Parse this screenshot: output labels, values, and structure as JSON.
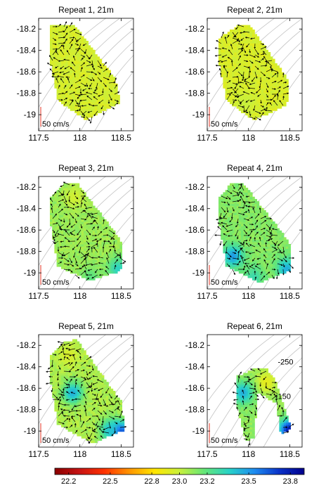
{
  "figure": {
    "colorbar": {
      "ticks": [
        22.2,
        22.5,
        22.8,
        23.0,
        23.2,
        23.5,
        23.8
      ],
      "range": [
        22.1,
        23.9
      ],
      "colormap": [
        "#8b0000",
        "#c81414",
        "#ff3200",
        "#ff9600",
        "#ffe600",
        "#c8f03c",
        "#64e678",
        "#28d2c8",
        "#1e8cf0",
        "#0a32c8",
        "#00008c"
      ]
    },
    "scale_label": "50 cm/s",
    "contour_labels": [
      "-250",
      "-150"
    ]
  },
  "chart_data": [
    {
      "type": "quiver",
      "title": "Repeat 1, 21m",
      "xlim": [
        117.5,
        118.65
      ],
      "ylim": [
        -19.15,
        -18.1
      ],
      "xticks": [
        "117.5",
        "118",
        "118.5"
      ],
      "yticks": [
        "-18.2",
        "-18.4",
        "-18.6",
        "-18.8",
        "-19"
      ],
      "region": [
        [
          117.62,
          -18.18
        ],
        [
          117.92,
          -18.17
        ],
        [
          118.42,
          -18.68
        ],
        [
          118.47,
          -18.9
        ],
        [
          118.06,
          -19.06
        ],
        [
          117.72,
          -18.88
        ],
        [
          117.62,
          -18.5
        ]
      ],
      "field": {
        "mean": 22.96,
        "warm": [],
        "cool": []
      }
    },
    {
      "type": "quiver",
      "title": "Repeat 2, 21m",
      "xlim": [
        117.5,
        118.65
      ],
      "ylim": [
        -19.15,
        -18.1
      ],
      "xticks": [
        "117.5",
        "118",
        "118.5"
      ],
      "yticks": [
        "-18.2",
        "-18.4",
        "-18.6",
        "-18.8",
        "-19"
      ],
      "region": [
        [
          117.62,
          -18.3
        ],
        [
          117.85,
          -18.18
        ],
        [
          118.0,
          -18.17
        ],
        [
          118.48,
          -18.7
        ],
        [
          118.45,
          -18.92
        ],
        [
          118.05,
          -19.06
        ],
        [
          117.72,
          -18.88
        ],
        [
          117.62,
          -18.5
        ]
      ],
      "field": {
        "mean": 22.95,
        "warm": [],
        "cool": [
          [
            117.95,
            -18.9,
            23.0
          ]
        ]
      }
    },
    {
      "type": "quiver",
      "title": "Repeat 3, 21m",
      "xlim": [
        117.5,
        118.65
      ],
      "ylim": [
        -19.15,
        -18.1
      ],
      "xticks": [
        "117.5",
        "118",
        "118.5"
      ],
      "yticks": [
        "-18.2",
        "-18.4",
        "-18.6",
        "-18.8",
        "-19"
      ],
      "region": [
        [
          117.62,
          -18.32
        ],
        [
          117.78,
          -18.18
        ],
        [
          117.95,
          -18.17
        ],
        [
          118.48,
          -18.7
        ],
        [
          118.5,
          -18.95
        ],
        [
          118.45,
          -19.0
        ],
        [
          118.1,
          -19.08
        ],
        [
          117.72,
          -18.95
        ],
        [
          117.62,
          -18.5
        ]
      ],
      "field": {
        "mean": 23.08,
        "warm": [
          [
            117.92,
            -18.3,
            22.97
          ]
        ],
        "cool": [
          [
            118.45,
            -18.97,
            23.35
          ],
          [
            118.12,
            -19.05,
            23.2
          ]
        ]
      }
    },
    {
      "type": "quiver",
      "title": "Repeat 4, 21m",
      "xlim": [
        117.5,
        118.65
      ],
      "ylim": [
        -19.15,
        -18.1
      ],
      "xticks": [
        "117.5",
        "118",
        "118.5"
      ],
      "yticks": [
        "-18.2",
        "-18.4",
        "-18.6",
        "-18.8",
        "-19"
      ],
      "region": [
        [
          117.62,
          -18.32
        ],
        [
          117.78,
          -18.17
        ],
        [
          117.92,
          -18.17
        ],
        [
          118.48,
          -18.72
        ],
        [
          118.5,
          -18.98
        ],
        [
          118.12,
          -19.1
        ],
        [
          117.72,
          -18.95
        ],
        [
          117.62,
          -18.5
        ]
      ],
      "field": {
        "mean": 23.12,
        "warm": [],
        "cool": [
          [
            117.8,
            -18.85,
            23.5
          ],
          [
            118.45,
            -18.97,
            23.45
          ],
          [
            118.05,
            -19.05,
            23.3
          ]
        ]
      }
    },
    {
      "type": "quiver",
      "title": "Repeat 5, 21m",
      "xlim": [
        117.5,
        118.65
      ],
      "ylim": [
        -19.15,
        -18.1
      ],
      "xticks": [
        "117.5",
        "118",
        "118.5"
      ],
      "yticks": [
        "-18.2",
        "-18.4",
        "-18.6",
        "-18.8",
        "-19"
      ],
      "region": [
        [
          117.62,
          -18.32
        ],
        [
          117.8,
          -18.17
        ],
        [
          117.95,
          -18.16
        ],
        [
          118.5,
          -18.75
        ],
        [
          118.52,
          -19.0
        ],
        [
          118.15,
          -19.12
        ],
        [
          117.72,
          -18.95
        ],
        [
          117.62,
          -18.5
        ]
      ],
      "field": {
        "mean": 23.05,
        "warm": [
          [
            117.85,
            -18.3,
            22.95
          ]
        ],
        "cool": [
          [
            117.9,
            -18.65,
            23.45
          ],
          [
            118.47,
            -19.02,
            23.75
          ],
          [
            118.35,
            -19.0,
            23.4
          ]
        ]
      }
    },
    {
      "type": "quiver",
      "title": "Repeat 6, 21m",
      "xlim": [
        117.5,
        118.65
      ],
      "ylim": [
        -19.15,
        -18.1
      ],
      "xticks": [
        "117.5",
        "118",
        "118.5"
      ],
      "yticks": [
        "-18.2",
        "-18.4",
        "-18.6",
        "-18.8",
        "-19"
      ],
      "region": [
        [
          117.85,
          -18.5
        ],
        [
          118.05,
          -18.43
        ],
        [
          118.2,
          -18.42
        ],
        [
          118.32,
          -18.55
        ],
        [
          118.5,
          -18.98
        ],
        [
          118.38,
          -19.05
        ],
        [
          118.32,
          -18.75
        ],
        [
          118.1,
          -18.65
        ],
        [
          118.05,
          -19.08
        ],
        [
          117.95,
          -19.1
        ],
        [
          117.85,
          -18.8
        ]
      ],
      "field": {
        "mean": 23.1,
        "warm": [
          [
            118.2,
            -18.55,
            22.9
          ]
        ],
        "cool": [
          [
            117.92,
            -18.65,
            23.45
          ],
          [
            118.48,
            -19.0,
            23.8
          ]
        ]
      },
      "contour_labels": [
        {
          "text": "-250",
          "at": [
            118.45,
            -18.38
          ]
        },
        {
          "text": "-150",
          "at": [
            118.42,
            -18.7
          ]
        }
      ]
    }
  ]
}
